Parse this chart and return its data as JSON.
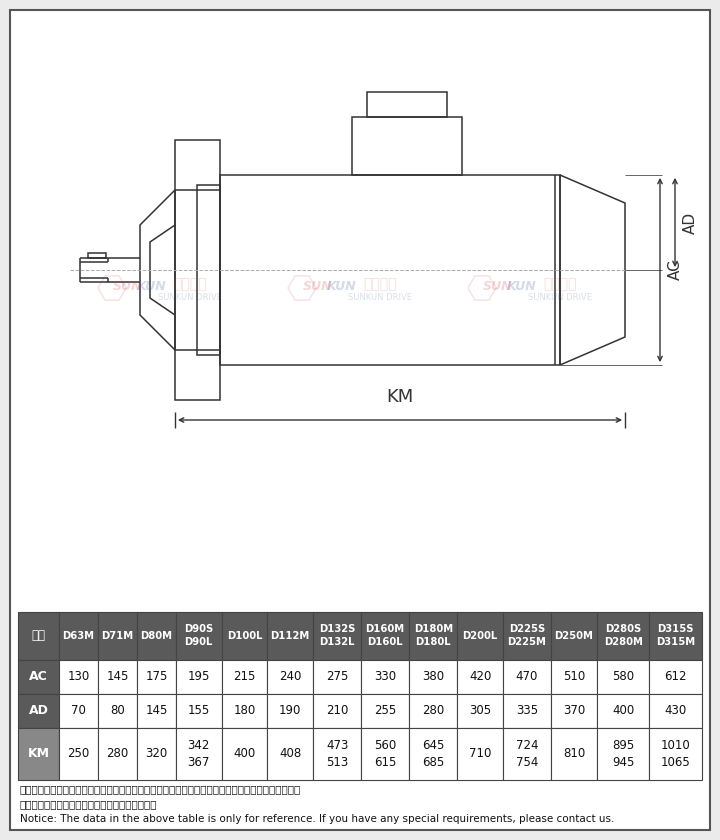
{
  "bg_color": "#ebebeb",
  "inner_bg": "#ffffff",
  "border_color": "#444444",
  "dc": "#333333",
  "note_text_cn": "注：上表中的电机尺寸为部分铁芯长度电机的参考尺寸，具体尺寸根据铁芯长度与联接法兰尺寸确定，\n因空间限制对电机尺寸有要求时请向我公司和询。",
  "note_text_en": "Notice: The data in the above table is only for reference. If you have any special requirements, please contact us.",
  "col_headers": [
    "型号",
    "D63M",
    "D71M",
    "D80M",
    "D90S\nD90L",
    "D100L",
    "D112M",
    "D132S\nD132L",
    "D160M\nD160L",
    "D180M\nD180L",
    "D200L",
    "D225S\nD225M",
    "D250M",
    "D280S\nD280M",
    "D315S\nD315M"
  ],
  "row_AC": [
    "AC",
    "130",
    "145",
    "175",
    "195",
    "215",
    "240",
    "275",
    "330",
    "380",
    "420",
    "470",
    "510",
    "580",
    "612"
  ],
  "row_AD": [
    "AD",
    "70",
    "80",
    "145",
    "155",
    "180",
    "190",
    "210",
    "255",
    "280",
    "305",
    "335",
    "370",
    "400",
    "430"
  ],
  "row_KM": [
    "KM",
    "250",
    "280",
    "320",
    "342\n367",
    "400",
    "408",
    "473\n513",
    "560\n615",
    "645\n685",
    "710",
    "724\n754",
    "810",
    "895\n945",
    "1010\n1065"
  ],
  "table_header_bg": "#5a5a5a",
  "table_km_bg": "#888888",
  "watermark_texts": [
    "SUN",
    "KUN",
    "上坤传动",
    "SUNKUN DRIVE"
  ]
}
